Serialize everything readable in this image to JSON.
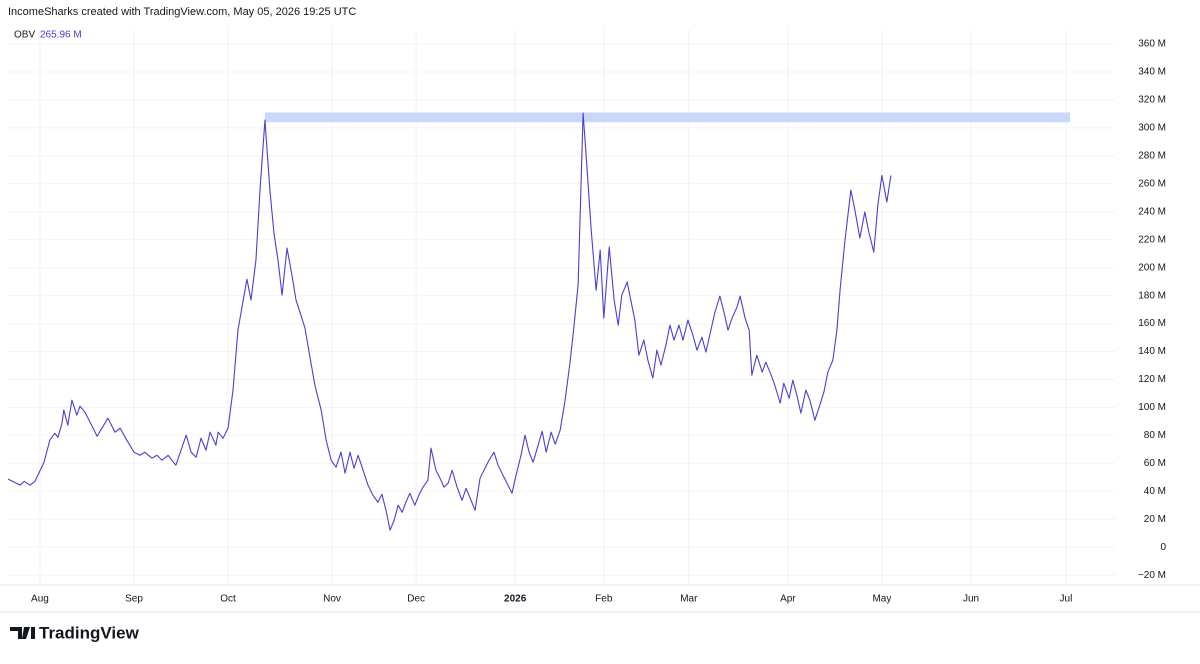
{
  "header": "IncomeSharks created with TradingView.com, May 05, 2026 19:25 UTC",
  "logo": "TradingView",
  "chart_data": {
    "type": "line",
    "legend_name": "OBV",
    "legend_value": "265.96 M",
    "x": [
      0,
      2.7,
      3.6,
      4.9,
      6,
      8,
      9.3,
      10.4,
      11.1,
      12,
      12.4,
      13.3,
      14.2,
      15.3,
      16,
      17.1,
      18.7,
      19.8,
      22.2,
      23.8,
      24.9,
      26.4,
      28,
      29.3,
      30.4,
      32,
      33.1,
      34.2,
      35.6,
      36.4,
      37.3,
      39.6,
      40.7,
      41.8,
      42.9,
      44,
      44.9,
      46.2,
      46.7,
      47.8,
      48.9,
      50,
      51.1,
      53.1,
      54,
      55.1,
      56,
      57.1,
      58.2,
      59.1,
      60,
      60.9,
      62,
      63.1,
      64,
      65.1,
      66,
      67.1,
      68.2,
      69.6,
      70.7,
      71.8,
      72.9,
      74,
      74.9,
      76,
      76.9,
      77.8,
      78.9,
      80,
      81.1,
      82.2,
      83.1,
      84,
      84.9,
      85.8,
      86.7,
      87.6,
      88.4,
      89.3,
      90.4,
      91.3,
      92.2,
      93.3,
      94,
      95.1,
      96,
      96.9,
      97.8,
      98.7,
      99.8,
      100.9,
      101.8,
      102.7,
      103.8,
      104.9,
      106,
      106.9,
      108,
      108.9,
      110,
      111.1,
      112,
      112.9,
      114,
      114.9,
      115.8,
      116.7,
      117.8,
      118.7,
      119.6,
      120.7,
      121.6,
      122.7,
      123.8,
      124.9,
      125.8,
      126.7,
      127.8,
      128.7,
      129.6,
      130.7,
      131.6,
      132.4,
      133.6,
      134.7,
      135.6,
      136.4,
      137.6,
      138.4,
      139.3,
      140.2,
      141.3,
      142.2,
      143.3,
      144.2,
      145.1,
      146.2,
      147.1,
      148,
      149.1,
      150,
      151.1,
      152.2,
      153.1,
      154.2,
      155.1,
      156.2,
      157.1,
      158.2,
      159.1,
      160,
      160.9,
      162,
      162.7,
      163.8,
      164.7,
      165.3,
      166.4,
      167.6,
      168.4,
      169.6,
      170.4,
      171.6,
      172.4,
      173.6,
      174.4,
      175.3,
      176.2,
      177.3,
      178.2,
      179.3,
      180.4,
      181.3,
      182.2,
      183.3,
      184.2,
      184.9,
      186,
      187.3,
      188.2,
      189.3,
      190.4,
      191.3,
      192.4,
      193.3,
      194.2,
      195.3,
      196.2
    ],
    "series": [
      {
        "name": "OBV",
        "color": "#4a40cf",
        "values": [
          48.7,
          44.4,
          47.2,
          44.4,
          47.2,
          60.8,
          76.6,
          81.6,
          78.7,
          88.7,
          98.1,
          87.3,
          105.2,
          94.5,
          100.9,
          96.6,
          86.6,
          79.4,
          92.3,
          82.3,
          85.2,
          76.6,
          68.0,
          65.8,
          68.0,
          63.7,
          65.8,
          62.3,
          65.8,
          62.3,
          58.7,
          80.2,
          68.0,
          64.4,
          78.0,
          69.4,
          82.3,
          73.0,
          82.3,
          78.0,
          85.2,
          112.4,
          155.3,
          191.8,
          176.8,
          205.4,
          255.5,
          305.6,
          255.5,
          224.7,
          205.4,
          180.4,
          214.0,
          194.7,
          176.8,
          166.0,
          156.7,
          136.0,
          115.9,
          98.1,
          76.6,
          62.3,
          57.3,
          68.0,
          53.0,
          68.0,
          56.5,
          65.8,
          55.1,
          44.4,
          37.2,
          32.2,
          37.9,
          26.5,
          12.2,
          19.3,
          30.1,
          25.0,
          32.2,
          38.6,
          30.1,
          37.2,
          42.9,
          47.9,
          70.9,
          55.1,
          49.4,
          42.9,
          45.8,
          55.1,
          42.9,
          33.6,
          42.2,
          35.1,
          26.5,
          49.4,
          56.5,
          62.3,
          68.0,
          58.7,
          51.5,
          44.4,
          38.6,
          51.5,
          65.8,
          80.2,
          68.0,
          60.8,
          73.0,
          83.0,
          68.0,
          82.3,
          73.7,
          83.7,
          105.2,
          132.4,
          158.9,
          188.2,
          310.6,
          269.8,
          226.9,
          183.9,
          212.6,
          163.9,
          214.7,
          176.8,
          158.9,
          180.4,
          189.7,
          176.8,
          162.5,
          137.4,
          148.2,
          133.8,
          121.0,
          141.0,
          130.3,
          144.6,
          158.9,
          148.2,
          158.9,
          148.2,
          162.5,
          151.7,
          141.0,
          150.3,
          139.6,
          155.3,
          168.2,
          179.6,
          168.2,
          155.3,
          163.9,
          171.8,
          179.6,
          163.9,
          155.3,
          123.1,
          137.4,
          125.3,
          132.4,
          123.1,
          115.9,
          103.1,
          117.4,
          106.6,
          119.5,
          108.8,
          95.9,
          112.4,
          105.2,
          90.9,
          101.6,
          110.9,
          125.3,
          133.8,
          155.3,
          183.9,
          219.7,
          255.5,
          241.2,
          221.2,
          239.8,
          225.5,
          211.1,
          244.8,
          265.96,
          246.9,
          265.96
        ]
      }
    ],
    "band": {
      "x": [
        57.1,
        236
      ],
      "y": [
        304,
        311
      ],
      "color": "#c9d7fb"
    },
    "xlim": [
      0,
      246
    ],
    "xticks": [
      {
        "value": 7.1,
        "label": "Aug"
      },
      {
        "value": 28,
        "label": "Sep"
      },
      {
        "value": 48.9,
        "label": "Oct"
      },
      {
        "value": 72,
        "label": "Nov"
      },
      {
        "value": 90.7,
        "label": "Dec"
      },
      {
        "value": 112.7,
        "label": "2026"
      },
      {
        "value": 132.4,
        "label": "Feb"
      },
      {
        "value": 151.3,
        "label": "Mar"
      },
      {
        "value": 173.3,
        "label": "Apr"
      },
      {
        "value": 194.2,
        "label": "May"
      },
      {
        "value": 214,
        "label": "Jun"
      },
      {
        "value": 235.1,
        "label": "Jul"
      }
    ],
    "ylim": [
      -27,
      370
    ],
    "yticks": [
      {
        "value": -20,
        "label": "−20 M"
      },
      0,
      {
        "value": 20,
        "label": "20 M"
      },
      {
        "value": 40,
        "label": "40 M"
      },
      {
        "value": 60,
        "label": "60 M"
      },
      {
        "value": 80,
        "label": "80 M"
      },
      {
        "value": 100,
        "label": "100 M"
      },
      {
        "value": 120,
        "label": "120 M"
      },
      {
        "value": 140,
        "label": "140 M"
      },
      {
        "value": 160,
        "label": "160 M"
      },
      {
        "value": 180,
        "label": "180 M"
      },
      {
        "value": 200,
        "label": "200 M"
      },
      {
        "value": 220,
        "label": "220 M"
      },
      {
        "value": 240,
        "label": "240 M"
      },
      {
        "value": 260,
        "label": "260 M"
      },
      {
        "value": 280,
        "label": "280 M"
      },
      {
        "value": 300,
        "label": "300 M"
      },
      {
        "value": 320,
        "label": "320 M"
      },
      {
        "value": 340,
        "label": "340 M"
      },
      {
        "value": 360,
        "label": "360 M"
      }
    ],
    "grid": true
  }
}
